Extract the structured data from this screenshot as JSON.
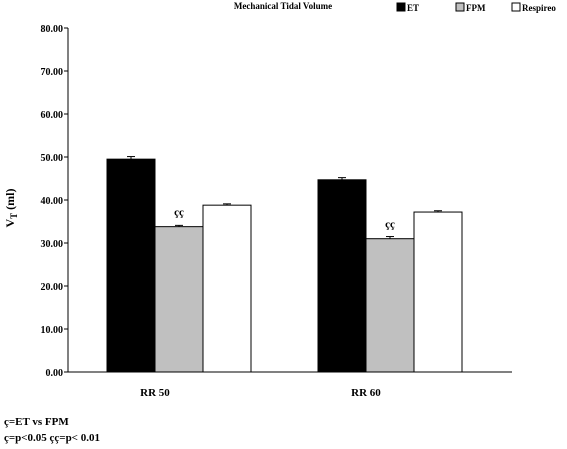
{
  "chart_data": {
    "type": "bar",
    "title": "Mechanical Tidal Volume",
    "ylabel_main": "V",
    "ylabel_sub": "T",
    "ylabel_unit": " (ml)",
    "xlabel": "",
    "ylim": [
      0,
      80
    ],
    "yticks": [
      "0.00",
      "10.00",
      "20.00",
      "30.00",
      "40.00",
      "50.00",
      "60.00",
      "70.00",
      "80.00"
    ],
    "categories": [
      "RR 50",
      "RR 60"
    ],
    "series": [
      {
        "name": "ET",
        "values": [
          49.5,
          44.7
        ],
        "errors": [
          0.6,
          0.5
        ],
        "color": "#000000"
      },
      {
        "name": "FPM",
        "values": [
          33.8,
          31.0
        ],
        "errors": [
          0.3,
          0.5
        ],
        "color": "#c0c0c0"
      },
      {
        "name": "Respireo",
        "values": [
          38.8,
          37.2
        ],
        "errors": [
          0.3,
          0.3
        ],
        "color": "#ffffff"
      }
    ],
    "annotations": [
      {
        "category": "RR 50",
        "series": "FPM",
        "text": "çç"
      },
      {
        "category": "RR 60",
        "series": "FPM",
        "text": "çç"
      }
    ],
    "grid": false,
    "legend_position": "top-right"
  },
  "footnotes": {
    "line1": "ç=ET vs FPM",
    "line2": "ç=p<0.05 çç=p< 0.01"
  }
}
